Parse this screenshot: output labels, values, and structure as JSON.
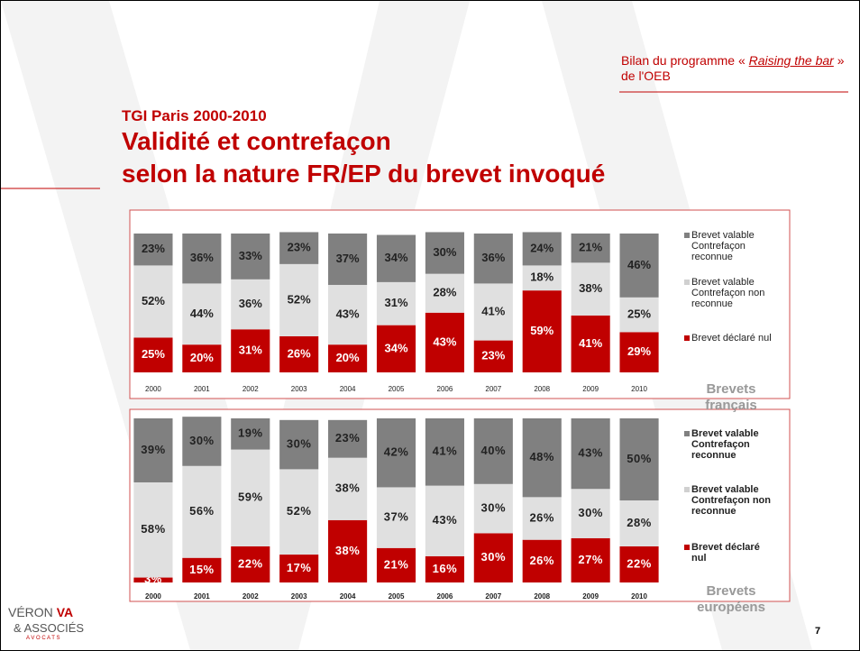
{
  "header": {
    "source_parts": [
      "Bilan du programme « ",
      "Raising the bar",
      " » de l'OEB"
    ],
    "kicker": "TGI Paris 2000-2010",
    "title_lines": [
      "Validité et contrefaçon",
      "selon la nature FR/EP du brevet invoqué"
    ]
  },
  "chart_data": [
    {
      "type": "stacked_bar",
      "label": "Brevets français",
      "categories": [
        "2000",
        "2001",
        "2002",
        "2003",
        "2004",
        "2005",
        "2006",
        "2007",
        "2008",
        "2009",
        "2010"
      ],
      "ylim": [
        0,
        100
      ],
      "series": [
        {
          "name": "Brevet déclaré nul",
          "color": "#c00000",
          "values": [
            25,
            20,
            31,
            26,
            20,
            34,
            43,
            23,
            59,
            41,
            29
          ],
          "value_labels": [
            "25%",
            "20%",
            "31%",
            "26%",
            "20%",
            "34%",
            "43%",
            "23%",
            "59%",
            "41%",
            "29%"
          ]
        },
        {
          "name": "Brevet valable Contrefaçon non reconnue",
          "color": "#e0e0e0",
          "values": [
            52,
            44,
            36,
            52,
            43,
            31,
            28,
            41,
            18,
            38,
            25
          ],
          "value_labels": [
            "52%",
            "44%",
            "36%",
            "52%",
            "43%",
            "31%",
            "28%",
            "41%",
            "18%",
            "38%",
            "25%"
          ]
        },
        {
          "name": "Brevet valable Contrefaçon reconnue",
          "color": "#808080",
          "values": [
            23,
            36,
            33,
            23,
            37,
            34,
            30,
            36,
            24,
            21,
            46
          ],
          "value_labels": [
            "23%",
            "36%",
            "33%",
            "23%",
            "37%",
            "34%",
            "30%",
            "36%",
            "24%",
            "21%",
            "46%"
          ]
        }
      ]
    },
    {
      "type": "stacked_bar",
      "label": "Brevets européens",
      "categories": [
        "2000",
        "2001",
        "2002",
        "2003",
        "2004",
        "2005",
        "2006",
        "2007",
        "2008",
        "2009",
        "2010"
      ],
      "ylim": [
        0,
        100
      ],
      "series": [
        {
          "name": "Brevet déclaré nul",
          "color": "#c00000",
          "values": [
            3,
            15,
            22,
            17,
            38,
            21,
            16,
            30,
            26,
            27,
            22
          ],
          "value_labels": [
            "3%",
            "15%",
            "22%",
            "17%",
            "38%",
            "21%",
            "16%",
            "30%",
            "26%",
            "27%",
            "22%"
          ]
        },
        {
          "name": "Brevet valable Contrefaçon non reconnue",
          "color": "#e0e0e0",
          "values": [
            58,
            56,
            59,
            52,
            38,
            37,
            43,
            30,
            26,
            30,
            28
          ],
          "value_labels": [
            "58%",
            "56%",
            "59%",
            "52%",
            "38%",
            "37%",
            "43%",
            "30%",
            "26%",
            "30%",
            "28%"
          ]
        },
        {
          "name": "Brevet valable Contrefaçon reconnue",
          "color": "#808080",
          "values": [
            39,
            30,
            19,
            30,
            23,
            42,
            41,
            40,
            48,
            43,
            50
          ],
          "value_labels": [
            "39%",
            "30%",
            "19%",
            "30%",
            "23%",
            "42%",
            "41%",
            "40%",
            "48%",
            "43%",
            "50%"
          ]
        }
      ]
    }
  ],
  "logo": {
    "name": "VÉRON",
    "mark": "VA",
    "sub": "& ASSOCIÉS",
    "tag": "A V O C A T S"
  },
  "page_number": "7"
}
